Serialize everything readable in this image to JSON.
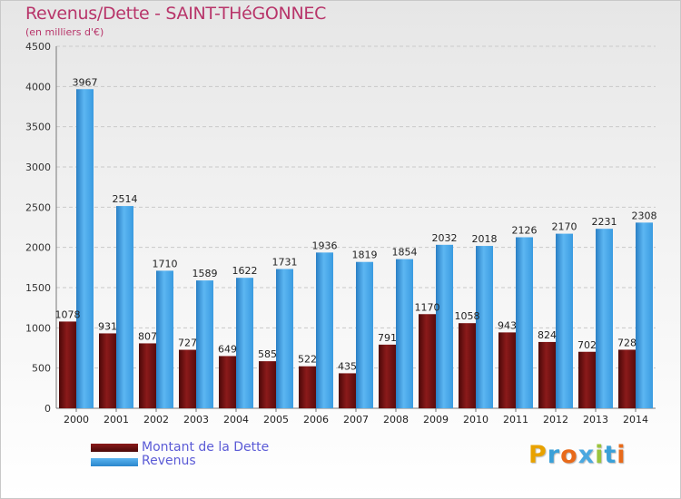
{
  "title": "Revenus/Dette - SAINT-THéGONNEC",
  "subtitle": "(en milliers d'€)",
  "chart_data": {
    "type": "bar",
    "title": "Revenus/Dette - SAINT-THéGONNEC",
    "ylabel": "(en milliers d'€)",
    "xlabel": "",
    "ylim": [
      0,
      4500
    ],
    "yticks": [
      "0",
      "500",
      "1000",
      "1500",
      "2000",
      "2500",
      "3000",
      "3500",
      "4000",
      "4500"
    ],
    "grid": true,
    "categories": [
      "2000",
      "2001",
      "2002",
      "2003",
      "2004",
      "2005",
      "2006",
      "2007",
      "2008",
      "2009",
      "2010",
      "2011",
      "2012",
      "2013",
      "2014"
    ],
    "series": [
      {
        "name": "Montant de la Dette",
        "color": "#8b1a1a",
        "values": [
          1078,
          931,
          807,
          727,
          649,
          585,
          522,
          435,
          791,
          1170,
          1058,
          943,
          824,
          702,
          728
        ],
        "labels": [
          "1078",
          "931",
          "807",
          "727",
          "649",
          "585",
          "522",
          "435",
          "791",
          "1170",
          "1058",
          "943",
          "824",
          "702",
          "728"
        ]
      },
      {
        "name": "Revenus",
        "color": "#3a9be0",
        "values": [
          3967,
          2514,
          1710,
          1589,
          1622,
          1731,
          1936,
          1819,
          1854,
          2032,
          2018,
          2126,
          2170,
          2231,
          2308
        ],
        "labels": [
          "3967",
          "2514",
          "1710",
          "1589",
          "1622",
          "1731",
          "1936",
          "1819",
          "1854",
          "2032",
          "2018",
          "2126",
          "2170",
          "2231",
          "2308"
        ]
      }
    ],
    "legend": [
      "Montant de la Dette",
      "Revenus"
    ],
    "legend_position": "bottom-left"
  },
  "logo": {
    "letters": [
      "P",
      "r",
      "o",
      "x",
      "i",
      "t",
      "i"
    ],
    "colors": [
      "#e8a200",
      "#3aa0d8",
      "#e86a1a",
      "#4aa8e0",
      "#9bc43c",
      "#3aa0d8",
      "#e86a1a"
    ]
  }
}
